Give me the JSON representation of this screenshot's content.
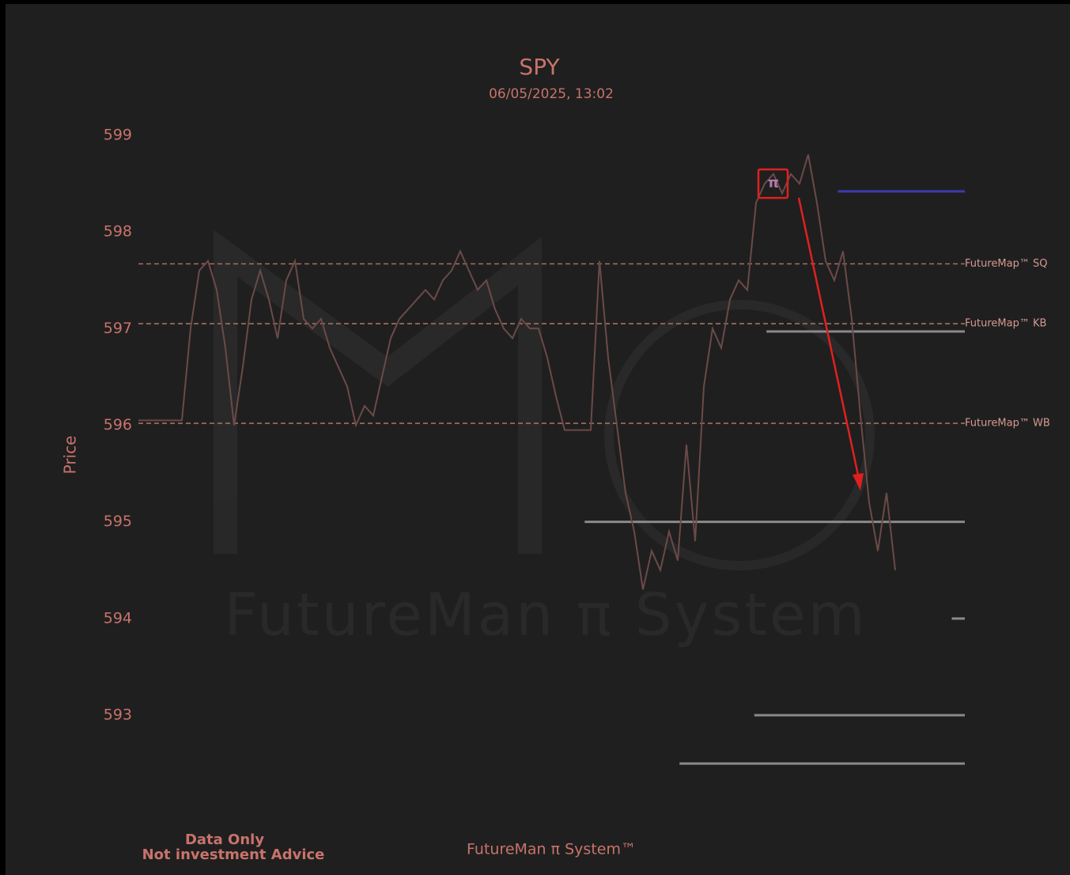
{
  "chart_data": {
    "type": "line",
    "title": "SPY",
    "subtitle": "06/05/2025, 13:02",
    "y_label": "Price",
    "watermark": "FutureMan π System",
    "footer_left": [
      "Data Only",
      "Not investment Advice"
    ],
    "footer_center": "FutureMan π System™",
    "marker": {
      "label": "π",
      "x": 73,
      "y": 598.5
    },
    "series": [
      {
        "name": "SPY",
        "color": "#6b4a48",
        "values": [
          596.05,
          596.05,
          596.05,
          596.05,
          596.05,
          596.05,
          597.0,
          597.6,
          597.7,
          597.4,
          596.8,
          596.0,
          596.6,
          597.3,
          597.6,
          597.3,
          596.9,
          597.5,
          597.7,
          597.1,
          597.0,
          597.1,
          596.8,
          596.6,
          596.4,
          596.0,
          596.2,
          596.1,
          596.5,
          596.9,
          597.1,
          597.2,
          597.3,
          597.4,
          597.3,
          597.5,
          597.6,
          597.8,
          597.6,
          597.4,
          597.5,
          597.2,
          597.0,
          596.9,
          597.1,
          597.0,
          597.0,
          596.7,
          596.3,
          595.95,
          595.95,
          595.95,
          595.95,
          597.7,
          596.7,
          596.0,
          595.3,
          594.9,
          594.3,
          594.7,
          594.5,
          594.9,
          594.6,
          595.8,
          594.8,
          596.4,
          597.0,
          596.8,
          597.3,
          597.5,
          597.4,
          598.3,
          598.5,
          598.6,
          598.4,
          598.6,
          598.5,
          598.8,
          598.3,
          597.7,
          597.5,
          597.8,
          597.1,
          596.1,
          595.2,
          594.7,
          595.3,
          594.5
        ]
      }
    ],
    "reference_lines": [
      {
        "label": "FutureMap™ SQ",
        "value": 597.67
      },
      {
        "label": "FutureMap™ KB",
        "value": 597.05
      },
      {
        "label": "FutureMap™ WB",
        "value": 596.02
      }
    ],
    "reference_color": "#a86e66",
    "levels": [
      {
        "value": 598.42,
        "from": 80.4,
        "color": "#3b3bb0"
      },
      {
        "value": 596.97,
        "from": 72.2,
        "color": "#8a8a8a"
      },
      {
        "value": 595.0,
        "from": 51.3,
        "color": "#8a8a8a"
      },
      {
        "value": 594.0,
        "from": 93.5,
        "color": "#8a8a8a"
      },
      {
        "value": 593.0,
        "from": 70.8,
        "color": "#8a8a8a"
      },
      {
        "value": 592.5,
        "from": 62.2,
        "color": "#8a8a8a"
      }
    ],
    "xlim": [
      0,
      95
    ],
    "ylim": [
      592.3,
      599.1
    ],
    "yticks": [
      593,
      594,
      595,
      596,
      597,
      598,
      599
    ]
  }
}
